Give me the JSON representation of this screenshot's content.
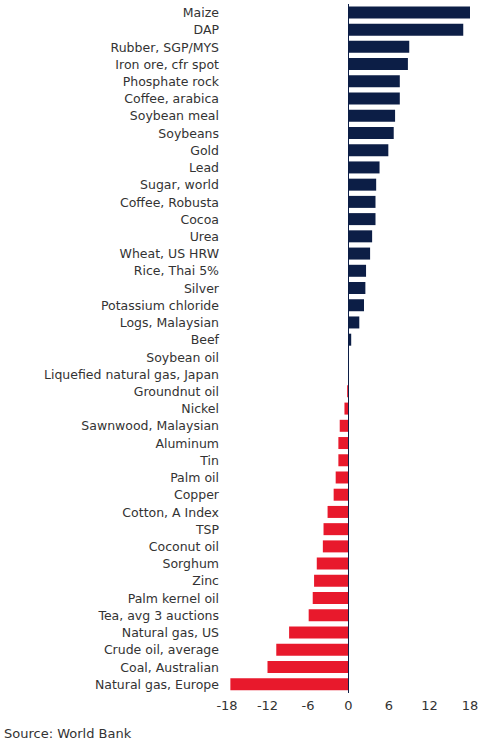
{
  "chart_data": {
    "type": "bar",
    "orientation": "horizontal",
    "source": "Source: World Bank",
    "categories": [
      "Maize",
      "DAP",
      "Rubber, SGP/MYS",
      "Iron ore, cfr spot",
      "Phosphate rock",
      "Coffee, arabica",
      "Soybean meal",
      "Soybeans",
      "Gold",
      "Lead",
      "Sugar, world",
      "Coffee, Robusta",
      "Cocoa",
      "Urea ",
      "Wheat, US HRW",
      "Rice, Thai 5% ",
      "Silver",
      "Potassium chloride",
      "Logs, Malaysian",
      "Beef",
      "Soybean oil",
      "Liquefied natural gas, Japan",
      "Groundnut oil",
      "Nickel",
      "Sawnwood, Malaysian",
      "Aluminum",
      "Tin",
      "Palm oil",
      "Copper",
      "Cotton, A Index",
      "TSP",
      "Coconut oil",
      "Sorghum",
      "Zinc",
      "Palm kernel oil",
      "Tea, avg 3 auctions",
      "Natural gas, US",
      "Crude oil, average",
      "Coal, Australian",
      "Natural gas, Europe"
    ],
    "values": [
      18,
      17,
      9,
      8.8,
      7.6,
      7.6,
      6.9,
      6.7,
      5.9,
      4.6,
      4.1,
      4.0,
      4.0,
      3.5,
      3.2,
      2.6,
      2.5,
      2.3,
      1.6,
      0.4,
      0,
      0,
      -0.2,
      -0.6,
      -1.3,
      -1.5,
      -1.5,
      -1.9,
      -2.2,
      -3.1,
      -3.7,
      -3.8,
      -4.7,
      -5.1,
      -5.3,
      -5.9,
      -8.8,
      -10.7,
      -12.0,
      -17.5
    ],
    "colors": [
      "#0c1e46",
      "#0c1e46",
      "#0c1e46",
      "#0c1e46",
      "#0c1e46",
      "#0c1e46",
      "#0c1e46",
      "#0c1e46",
      "#0c1e46",
      "#0c1e46",
      "#0c1e46",
      "#0c1e46",
      "#0c1e46",
      "#0c1e46",
      "#0c1e46",
      "#0c1e46",
      "#0c1e46",
      "#0c1e46",
      "#0c1e46",
      "#0c1e46",
      "#0c1e46",
      "#0c1e46",
      "#e8192c",
      "#e8192c",
      "#e8192c",
      "#e8192c",
      "#e8192c",
      "#e8192c",
      "#e8192c",
      "#e8192c",
      "#e8192c",
      "#e8192c",
      "#e8192c",
      "#e8192c",
      "#e8192c",
      "#e8192c",
      "#e8192c",
      "#e8192c",
      "#e8192c",
      "#e8192c"
    ],
    "xlim": [
      -18,
      18
    ],
    "xticks": [
      -18,
      -12,
      -6,
      0,
      6,
      12,
      18
    ],
    "grid": false
  }
}
